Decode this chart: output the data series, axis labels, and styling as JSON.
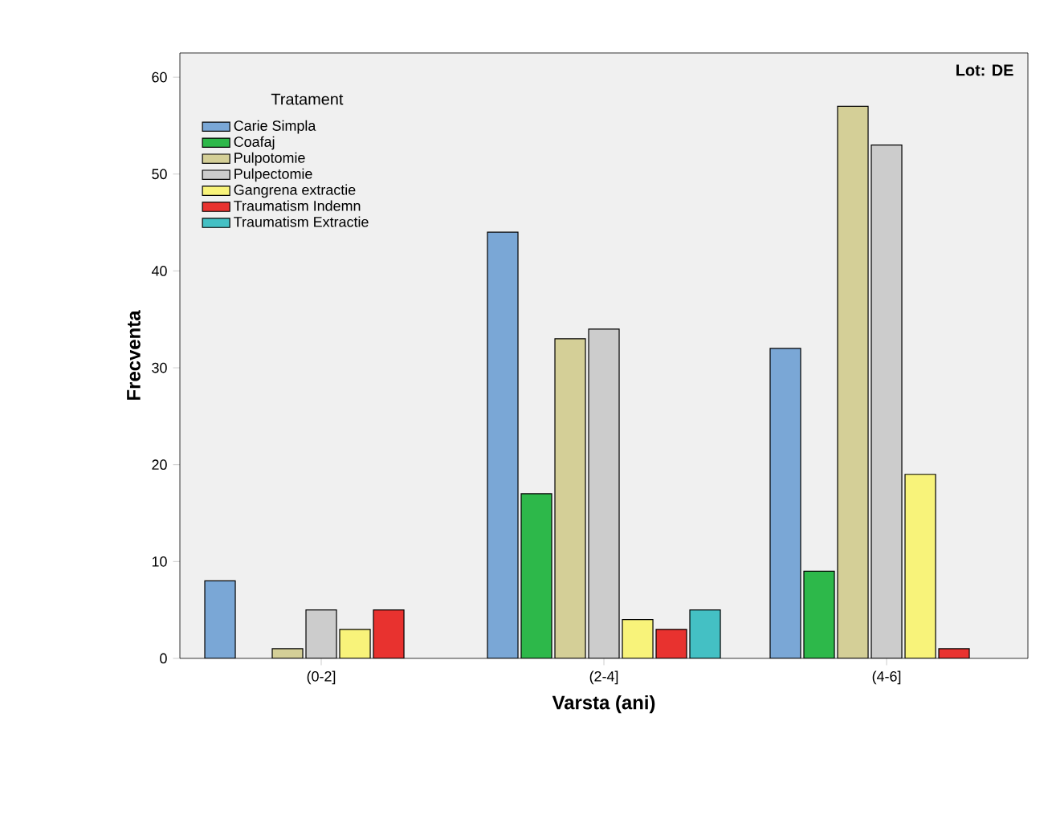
{
  "chart_data": {
    "type": "bar",
    "xlabel": "Varsta (ani)",
    "ylabel": "Frecventa",
    "legend_title": "Tratament",
    "annotations": [
      "Lot: DE"
    ],
    "categories": [
      "(0-2]",
      "(2-4]",
      "(4-6]"
    ],
    "series": [
      {
        "name": "Carie Simpla",
        "color": "#7aa7d6",
        "values": [
          8,
          44,
          32
        ]
      },
      {
        "name": "Coafaj",
        "color": "#2db84a",
        "values": [
          null,
          17,
          9
        ]
      },
      {
        "name": "Pulpotomie",
        "color": "#d4cf97",
        "values": [
          1,
          33,
          57
        ]
      },
      {
        "name": "Pulpectomie",
        "color": "#cccccc",
        "values": [
          5,
          34,
          53
        ]
      },
      {
        "name": "Gangrena extractie",
        "color": "#f8f37a",
        "values": [
          3,
          4,
          19
        ]
      },
      {
        "name": "Traumatism Indemn",
        "color": "#e8322f",
        "values": [
          5,
          3,
          1
        ]
      },
      {
        "name": "Traumatism Extractie",
        "color": "#44c0c4",
        "values": [
          null,
          5,
          null
        ]
      }
    ],
    "ylim": [
      0,
      62.5
    ],
    "yticks": [
      0,
      10,
      20,
      30,
      40,
      50,
      60
    ],
    "grid": false,
    "legend": "top left"
  }
}
